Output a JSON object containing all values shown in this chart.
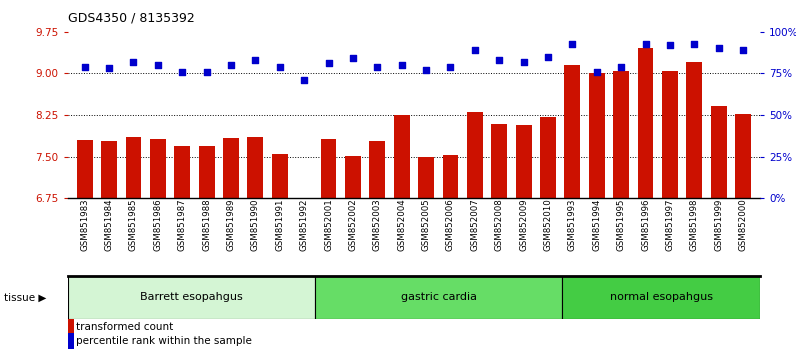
{
  "title": "GDS4350 / 8135392",
  "samples": [
    "GSM851983",
    "GSM851984",
    "GSM851985",
    "GSM851986",
    "GSM851987",
    "GSM851988",
    "GSM851989",
    "GSM851990",
    "GSM851991",
    "GSM851992",
    "GSM852001",
    "GSM852002",
    "GSM852003",
    "GSM852004",
    "GSM852005",
    "GSM852006",
    "GSM852007",
    "GSM852008",
    "GSM852009",
    "GSM852010",
    "GSM851993",
    "GSM851994",
    "GSM851995",
    "GSM851996",
    "GSM851997",
    "GSM851998",
    "GSM851999",
    "GSM852000"
  ],
  "bar_values": [
    7.8,
    7.78,
    7.85,
    7.81,
    7.7,
    7.69,
    7.84,
    7.85,
    7.55,
    6.68,
    7.82,
    7.52,
    7.78,
    8.25,
    7.5,
    7.53,
    8.3,
    8.08,
    8.07,
    8.21,
    9.15,
    9.0,
    9.05,
    9.45,
    9.05,
    9.2,
    8.42,
    8.27
  ],
  "percentile_values": [
    79,
    78,
    82,
    80,
    76,
    76,
    80,
    83,
    79,
    71,
    81,
    84,
    79,
    80,
    77,
    79,
    89,
    83,
    82,
    85,
    93,
    76,
    79,
    93,
    92,
    93,
    90,
    89
  ],
  "groups": [
    {
      "label": "Barrett esopahgus",
      "start": 0,
      "end": 10,
      "color": "#d4f5d4"
    },
    {
      "label": "gastric cardia",
      "start": 10,
      "end": 20,
      "color": "#66dd66"
    },
    {
      "label": "normal esopahgus",
      "start": 20,
      "end": 28,
      "color": "#44cc44"
    }
  ],
  "bar_color": "#cc1100",
  "dot_color": "#0000cc",
  "ylim_left": [
    6.75,
    9.75
  ],
  "yticks_left": [
    6.75,
    7.5,
    8.25,
    9.0,
    9.75
  ],
  "ylim_right": [
    0,
    100
  ],
  "yticks_right": [
    0,
    25,
    50,
    75,
    100
  ],
  "ytick_labels_right": [
    "0%",
    "25%",
    "50%",
    "75%",
    "100%"
  ],
  "hlines": [
    7.5,
    8.25,
    9.0
  ],
  "background_color": "#ffffff"
}
